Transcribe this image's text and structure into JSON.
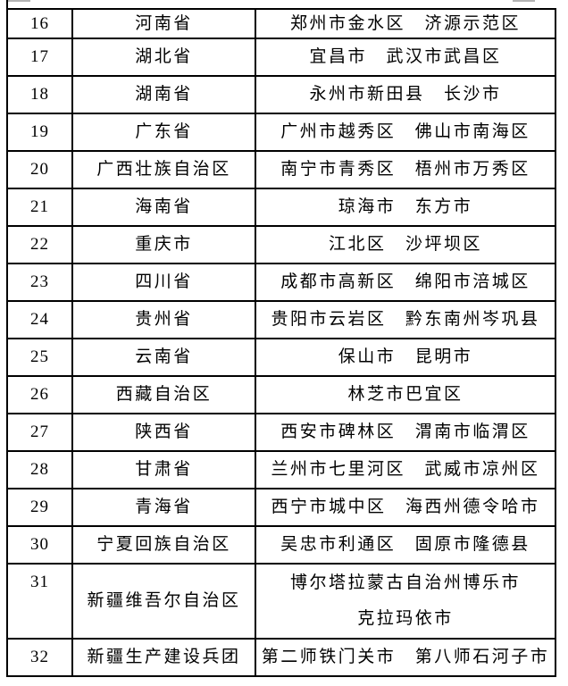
{
  "table": {
    "rows": [
      {
        "num": "16",
        "province": "河南省",
        "cities": [
          "郑州市金水区",
          "济源示范区"
        ]
      },
      {
        "num": "17",
        "province": "湖北省",
        "cities": [
          "宜昌市",
          "武汉市武昌区"
        ]
      },
      {
        "num": "18",
        "province": "湖南省",
        "cities": [
          "永州市新田县",
          "长沙市"
        ]
      },
      {
        "num": "19",
        "province": "广东省",
        "cities": [
          "广州市越秀区",
          "佛山市南海区"
        ]
      },
      {
        "num": "20",
        "province": "广西壮族自治区",
        "cities": [
          "南宁市青秀区",
          "梧州市万秀区"
        ]
      },
      {
        "num": "21",
        "province": "海南省",
        "cities": [
          "琼海市",
          "东方市"
        ]
      },
      {
        "num": "22",
        "province": "重庆市",
        "cities": [
          "江北区",
          "沙坪坝区"
        ]
      },
      {
        "num": "23",
        "province": "四川省",
        "cities": [
          "成都市高新区",
          "绵阳市涪城区"
        ]
      },
      {
        "num": "24",
        "province": "贵州省",
        "cities": [
          "贵阳市云岩区",
          "黔东南州岑巩县"
        ]
      },
      {
        "num": "25",
        "province": "云南省",
        "cities": [
          "保山市",
          "昆明市"
        ]
      },
      {
        "num": "26",
        "province": "西藏自治区",
        "cities": [
          "林芝市巴宜区"
        ]
      },
      {
        "num": "27",
        "province": "陕西省",
        "cities": [
          "西安市碑林区",
          "渭南市临渭区"
        ]
      },
      {
        "num": "28",
        "province": "甘肃省",
        "cities": [
          "兰州市七里河区",
          "武威市凉州区"
        ]
      },
      {
        "num": "29",
        "province": "青海省",
        "cities": [
          "西宁市城中区",
          "海西州德令哈市"
        ]
      },
      {
        "num": "30",
        "province": "宁夏回族自治区",
        "cities": [
          "吴忠市利通区",
          "固原市隆德县"
        ]
      },
      {
        "num": "31",
        "province": "新疆维吾尔自治区",
        "cities": [
          "博尔塔拉蒙古自治州博乐市",
          "克拉玛依市"
        ],
        "tall": true
      },
      {
        "num": "32",
        "province": "新疆生产建设兵团",
        "cities": [
          "第二师铁门关市",
          "第八师石河子市"
        ]
      }
    ]
  }
}
